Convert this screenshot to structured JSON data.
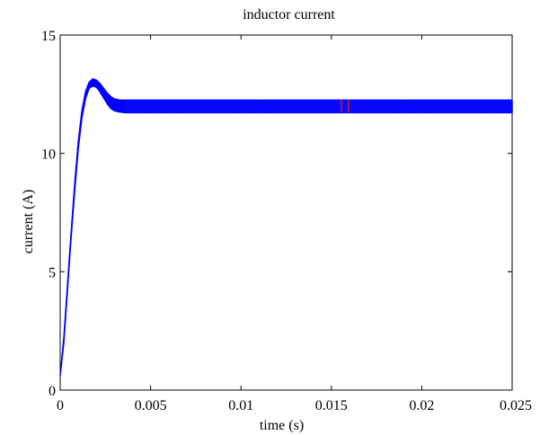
{
  "chart_data": {
    "type": "line",
    "title": "inductor current",
    "xlabel": "time (s)",
    "ylabel": "current (A)",
    "xlim": [
      0,
      0.025
    ],
    "ylim": [
      0,
      15
    ],
    "xticks": [
      {
        "value": 0,
        "label": "0"
      },
      {
        "value": 0.005,
        "label": "0.005"
      },
      {
        "value": 0.01,
        "label": "0.01"
      },
      {
        "value": 0.015,
        "label": "0.015"
      },
      {
        "value": 0.02,
        "label": "0.02"
      },
      {
        "value": 0.025,
        "label": "0.025"
      }
    ],
    "yticks": [
      {
        "value": 0,
        "label": "0"
      },
      {
        "value": 5,
        "label": "5"
      },
      {
        "value": 10,
        "label": "10"
      },
      {
        "value": 15,
        "label": "15"
      }
    ],
    "grid": false,
    "legend": "none",
    "series": [
      {
        "color": "#0000ff",
        "ripple_band_high": [
          [
            0,
            0.6
          ],
          [
            0.0002,
            2.2
          ],
          [
            0.0004,
            4.4
          ],
          [
            0.0006,
            6.6
          ],
          [
            0.0008,
            8.7
          ],
          [
            0.001,
            10.5
          ],
          [
            0.0012,
            11.8
          ],
          [
            0.0014,
            12.6
          ],
          [
            0.0016,
            13.0
          ],
          [
            0.0018,
            13.15
          ],
          [
            0.002,
            13.1
          ],
          [
            0.0022,
            12.95
          ],
          [
            0.0024,
            12.75
          ],
          [
            0.0026,
            12.55
          ],
          [
            0.0028,
            12.4
          ],
          [
            0.003,
            12.3
          ],
          [
            0.0033,
            12.25
          ],
          [
            0.0036,
            12.25
          ],
          [
            0.004,
            12.25
          ],
          [
            0.005,
            12.25
          ],
          [
            0.01,
            12.25
          ],
          [
            0.015,
            12.25
          ],
          [
            0.02,
            12.25
          ],
          [
            0.025,
            12.25
          ]
        ],
        "ripple_band_low": [
          [
            0,
            0.6
          ],
          [
            0.0002,
            2.0
          ],
          [
            0.0004,
            4.2
          ],
          [
            0.0006,
            6.4
          ],
          [
            0.0008,
            8.4
          ],
          [
            0.001,
            10.2
          ],
          [
            0.0012,
            11.5
          ],
          [
            0.0014,
            12.3
          ],
          [
            0.0016,
            12.75
          ],
          [
            0.0018,
            12.85
          ],
          [
            0.002,
            12.8
          ],
          [
            0.0022,
            12.6
          ],
          [
            0.0024,
            12.35
          ],
          [
            0.0026,
            12.1
          ],
          [
            0.0028,
            11.9
          ],
          [
            0.003,
            11.8
          ],
          [
            0.0033,
            11.75
          ],
          [
            0.0036,
            11.72
          ],
          [
            0.004,
            11.72
          ],
          [
            0.005,
            11.72
          ],
          [
            0.01,
            11.72
          ],
          [
            0.015,
            11.72
          ],
          [
            0.02,
            11.72
          ],
          [
            0.025,
            11.72
          ]
        ]
      }
    ],
    "annotations": [
      {
        "type": "marker",
        "x": 0.01555,
        "y": 12.0,
        "color": "#cc2222"
      },
      {
        "type": "marker",
        "x": 0.01595,
        "y": 12.0,
        "color": "#cc2222"
      }
    ]
  }
}
